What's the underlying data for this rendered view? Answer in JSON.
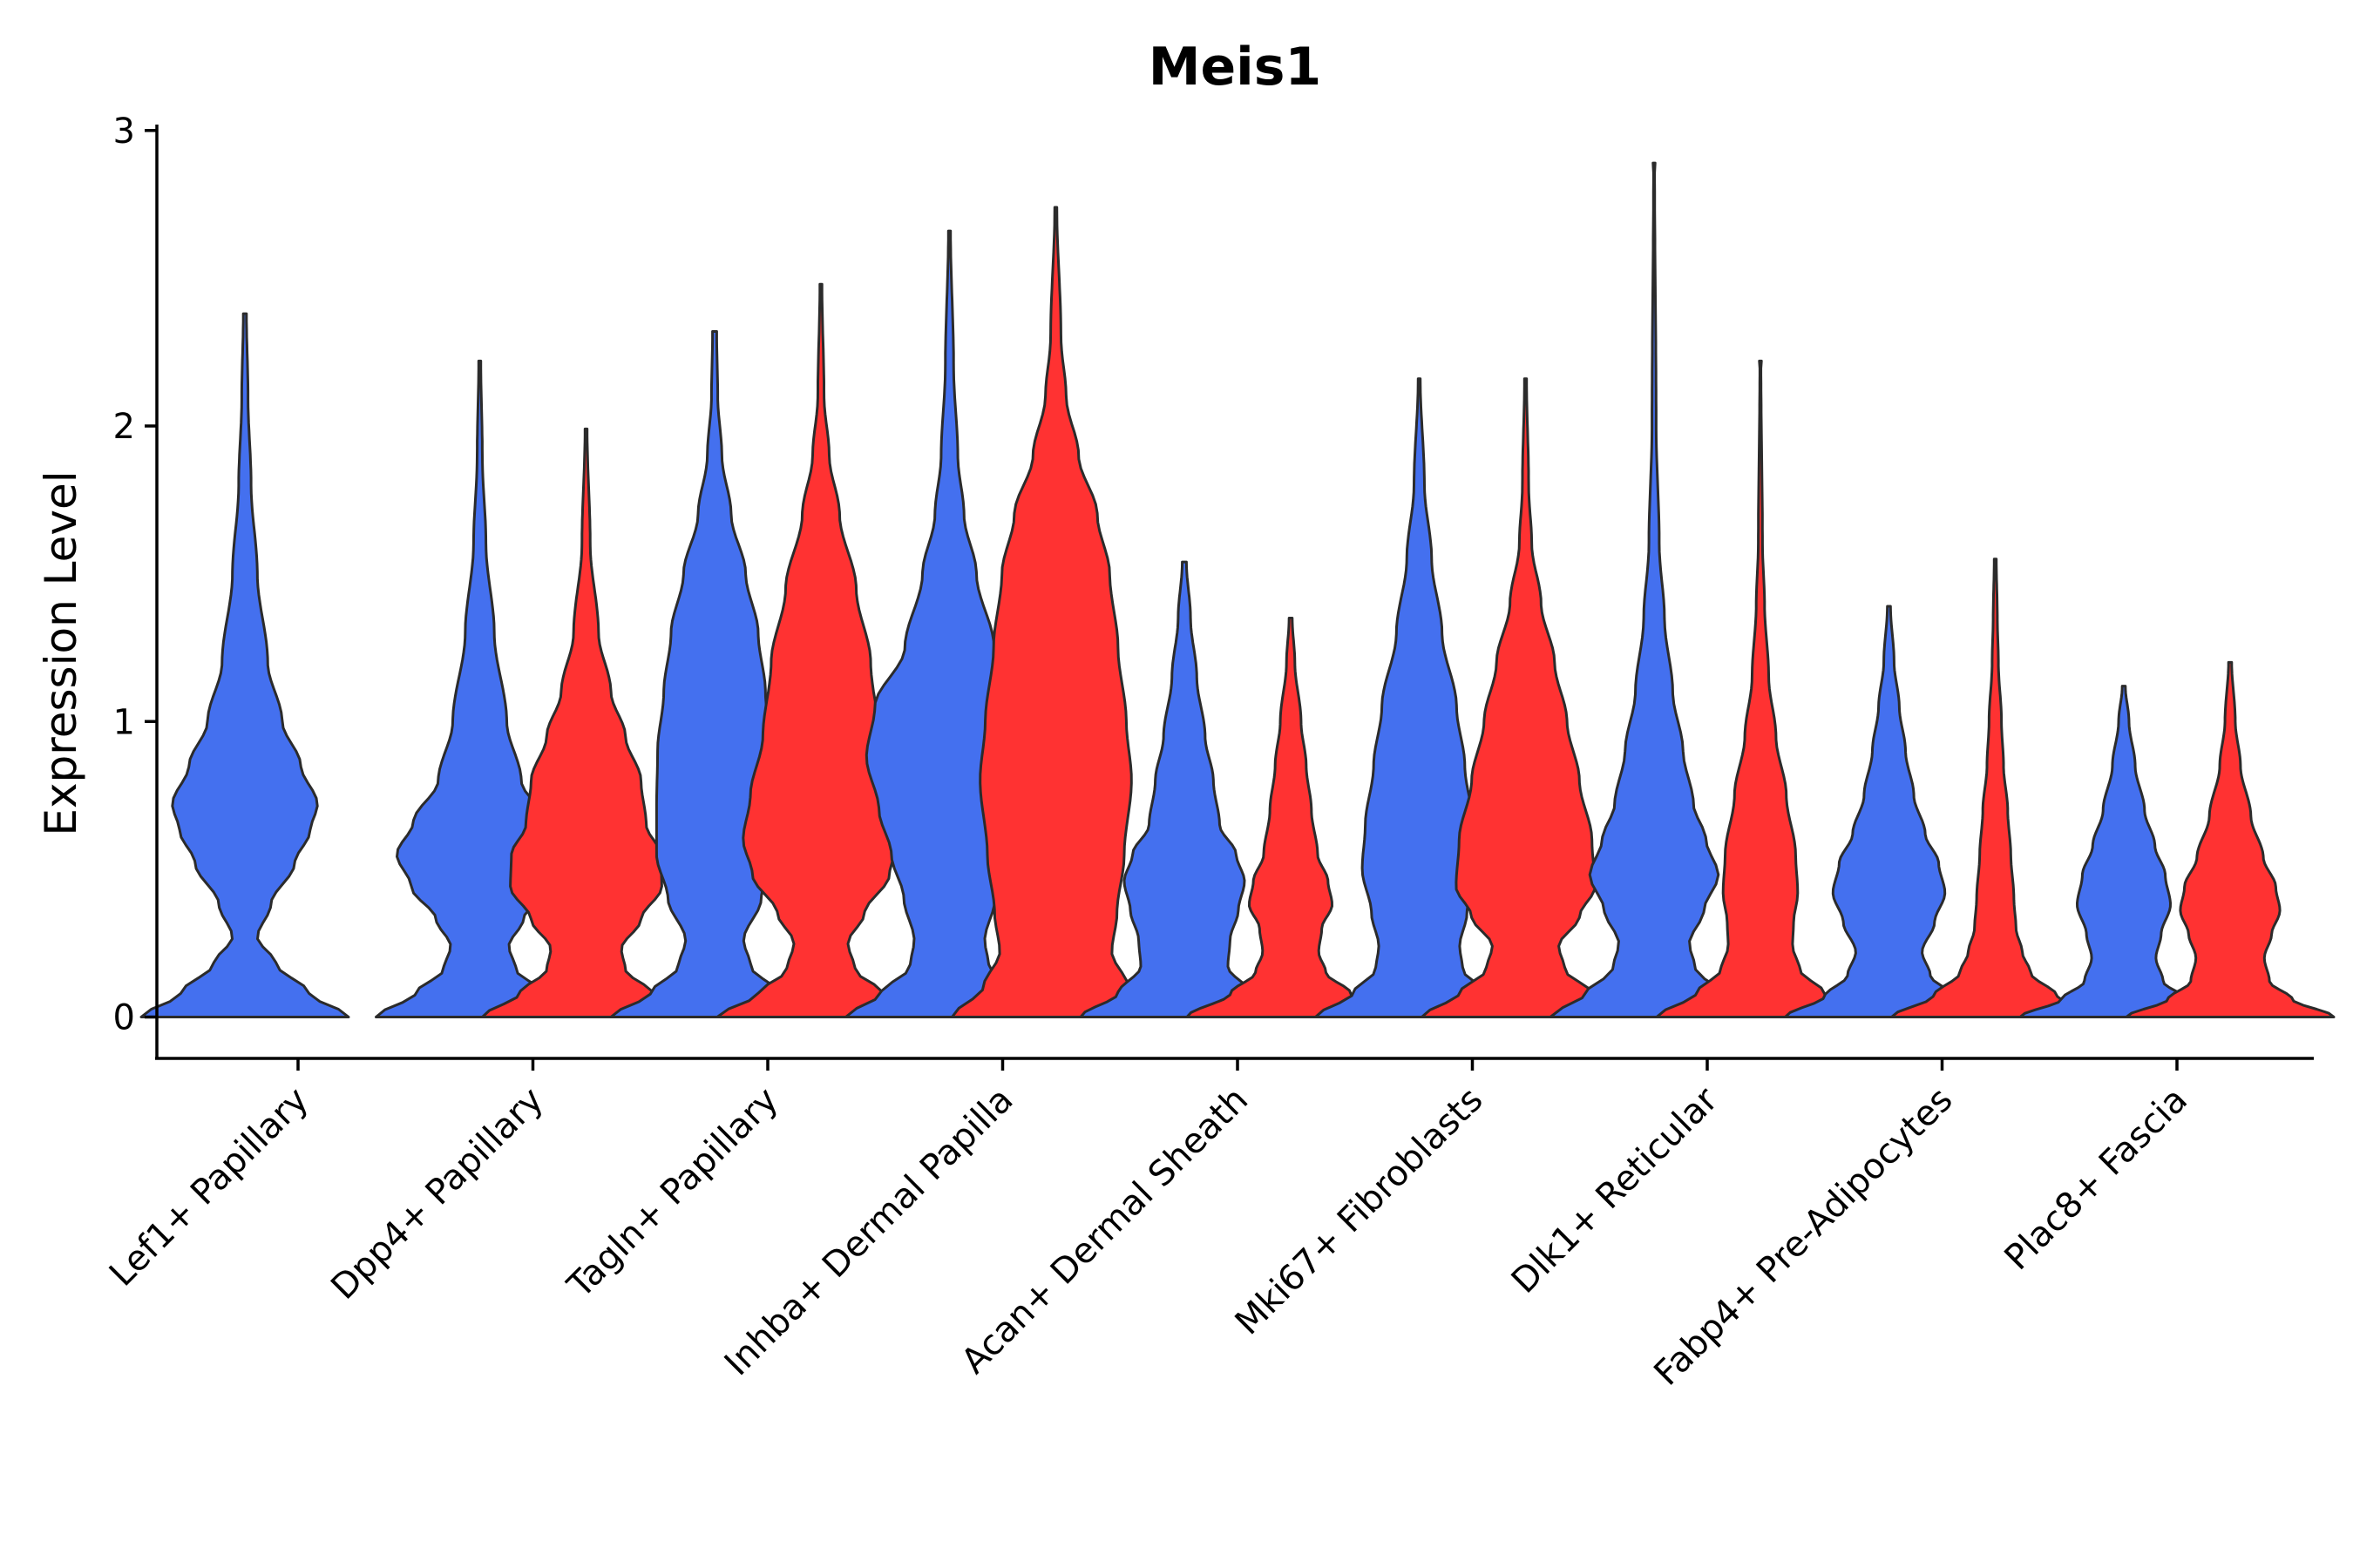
{
  "chart_data": {
    "type": "violin",
    "title": "Meis1",
    "ylabel": "Expression Level",
    "xlabel": "",
    "ylim": [
      -0.14,
      3.02
    ],
    "yticks": [
      0,
      1,
      2,
      3
    ],
    "yticks_labels": [
      "0",
      "1",
      "2",
      "3"
    ],
    "colors": {
      "group_a": "#4470ef",
      "group_b": "#ff3232"
    },
    "categories": [
      "Lef1+ Papillary",
      "Dpp4+ Papillary",
      "Tagln+ Papillary",
      "Inhba+ Dermal Papilla",
      "Acan+ Dermal Sheath",
      "Mki67+ Fibroblasts",
      "Dlk1+ Reticular",
      "Fabp4+ Pre-Adipocytes",
      "Plac8+ Fascia"
    ],
    "violins": [
      {
        "category": "Lef1+ Papillary",
        "group": "a",
        "max": 2.38,
        "profile": [
          [
            0,
            1.0
          ],
          [
            0.08,
            0.62
          ],
          [
            0.18,
            0.3
          ],
          [
            0.27,
            0.12
          ],
          [
            0.38,
            0.25
          ],
          [
            0.52,
            0.48
          ],
          [
            0.63,
            0.63
          ],
          [
            0.72,
            0.7
          ],
          [
            0.85,
            0.54
          ],
          [
            1.0,
            0.36
          ],
          [
            1.2,
            0.22
          ],
          [
            1.5,
            0.12
          ],
          [
            1.8,
            0.06
          ],
          [
            2.1,
            0.03
          ],
          [
            2.38,
            0.015
          ]
        ]
      },
      {
        "category": "Dpp4+ Papillary",
        "group": "a",
        "max": 2.22,
        "profile": [
          [
            0,
            1.0
          ],
          [
            0.08,
            0.62
          ],
          [
            0.16,
            0.35
          ],
          [
            0.24,
            0.28
          ],
          [
            0.33,
            0.42
          ],
          [
            0.44,
            0.66
          ],
          [
            0.55,
            0.8
          ],
          [
            0.66,
            0.64
          ],
          [
            0.8,
            0.4
          ],
          [
            1.0,
            0.26
          ],
          [
            1.3,
            0.14
          ],
          [
            1.6,
            0.06
          ],
          [
            1.9,
            0.025
          ],
          [
            2.22,
            0.01
          ]
        ]
      },
      {
        "category": "Dpp4+ Papillary",
        "group": "b",
        "max": 1.99,
        "profile": [
          [
            0,
            1.0
          ],
          [
            0.08,
            0.64
          ],
          [
            0.16,
            0.38
          ],
          [
            0.23,
            0.34
          ],
          [
            0.33,
            0.53
          ],
          [
            0.44,
            0.73
          ],
          [
            0.55,
            0.72
          ],
          [
            0.65,
            0.58
          ],
          [
            0.8,
            0.53
          ],
          [
            0.95,
            0.38
          ],
          [
            1.1,
            0.24
          ],
          [
            1.3,
            0.12
          ],
          [
            1.6,
            0.04
          ],
          [
            1.99,
            0.01
          ]
        ]
      },
      {
        "category": "Tagln+ Papillary",
        "group": "a",
        "max": 2.32,
        "profile": [
          [
            0,
            1.0
          ],
          [
            0.08,
            0.62
          ],
          [
            0.17,
            0.35
          ],
          [
            0.26,
            0.28
          ],
          [
            0.4,
            0.45
          ],
          [
            0.55,
            0.56
          ],
          [
            0.7,
            0.56
          ],
          [
            0.9,
            0.55
          ],
          [
            1.1,
            0.49
          ],
          [
            1.3,
            0.42
          ],
          [
            1.5,
            0.3
          ],
          [
            1.7,
            0.16
          ],
          [
            1.9,
            0.07
          ],
          [
            2.1,
            0.03
          ],
          [
            2.32,
            0.02
          ]
        ]
      },
      {
        "category": "Tagln+ Papillary",
        "group": "b",
        "max": 2.48,
        "profile": [
          [
            0,
            1.0
          ],
          [
            0.08,
            0.6
          ],
          [
            0.16,
            0.33
          ],
          [
            0.25,
            0.26
          ],
          [
            0.35,
            0.42
          ],
          [
            0.48,
            0.66
          ],
          [
            0.6,
            0.75
          ],
          [
            0.75,
            0.68
          ],
          [
            0.95,
            0.56
          ],
          [
            1.2,
            0.48
          ],
          [
            1.45,
            0.34
          ],
          [
            1.7,
            0.18
          ],
          [
            1.9,
            0.08
          ],
          [
            2.1,
            0.03
          ],
          [
            2.48,
            0.01
          ]
        ]
      },
      {
        "category": "Inhba+ Dermal Papilla",
        "group": "a",
        "max": 2.66,
        "profile": [
          [
            0,
            1.0
          ],
          [
            0.08,
            0.66
          ],
          [
            0.17,
            0.38
          ],
          [
            0.26,
            0.34
          ],
          [
            0.4,
            0.44
          ],
          [
            0.55,
            0.56
          ],
          [
            0.7,
            0.68
          ],
          [
            0.88,
            0.8
          ],
          [
            1.05,
            0.72
          ],
          [
            1.25,
            0.43
          ],
          [
            1.5,
            0.26
          ],
          [
            1.7,
            0.14
          ],
          [
            1.9,
            0.08
          ],
          [
            2.2,
            0.04
          ],
          [
            2.66,
            0.01
          ]
        ]
      },
      {
        "category": "Inhba+ Dermal Papilla",
        "group": "b",
        "max": 2.74,
        "profile": [
          [
            0,
            1.0
          ],
          [
            0.1,
            0.7
          ],
          [
            0.22,
            0.54
          ],
          [
            0.35,
            0.59
          ],
          [
            0.55,
            0.66
          ],
          [
            0.8,
            0.73
          ],
          [
            1.0,
            0.68
          ],
          [
            1.25,
            0.6
          ],
          [
            1.5,
            0.52
          ],
          [
            1.7,
            0.4
          ],
          [
            1.9,
            0.22
          ],
          [
            2.1,
            0.1
          ],
          [
            2.3,
            0.05
          ],
          [
            2.74,
            0.01
          ]
        ]
      },
      {
        "category": "Acan+ Dermal Sheath",
        "group": "a",
        "max": 1.54,
        "profile": [
          [
            0,
            1.0
          ],
          [
            0.08,
            0.64
          ],
          [
            0.17,
            0.42
          ],
          [
            0.26,
            0.44
          ],
          [
            0.36,
            0.52
          ],
          [
            0.46,
            0.58
          ],
          [
            0.55,
            0.5
          ],
          [
            0.65,
            0.34
          ],
          [
            0.8,
            0.28
          ],
          [
            0.95,
            0.2
          ],
          [
            1.15,
            0.12
          ],
          [
            1.35,
            0.06
          ],
          [
            1.54,
            0.02
          ]
        ]
      },
      {
        "category": "Acan+ Dermal Sheath",
        "group": "b",
        "max": 1.35,
        "profile": [
          [
            0,
            1.0
          ],
          [
            0.08,
            0.58
          ],
          [
            0.15,
            0.34
          ],
          [
            0.22,
            0.27
          ],
          [
            0.3,
            0.3
          ],
          [
            0.38,
            0.4
          ],
          [
            0.46,
            0.36
          ],
          [
            0.55,
            0.26
          ],
          [
            0.7,
            0.2
          ],
          [
            0.85,
            0.15
          ],
          [
            1.0,
            0.1
          ],
          [
            1.2,
            0.04
          ],
          [
            1.35,
            0.015
          ]
        ]
      },
      {
        "category": "Mki67+ Fibroblasts",
        "group": "a",
        "max": 2.16,
        "profile": [
          [
            0,
            1.0
          ],
          [
            0.08,
            0.64
          ],
          [
            0.16,
            0.42
          ],
          [
            0.24,
            0.39
          ],
          [
            0.35,
            0.46
          ],
          [
            0.5,
            0.55
          ],
          [
            0.65,
            0.52
          ],
          [
            0.85,
            0.44
          ],
          [
            1.05,
            0.36
          ],
          [
            1.3,
            0.22
          ],
          [
            1.55,
            0.12
          ],
          [
            1.8,
            0.05
          ],
          [
            2.16,
            0.01
          ]
        ]
      },
      {
        "category": "Mki67+ Fibroblasts",
        "group": "b",
        "max": 2.16,
        "profile": [
          [
            0,
            1.0
          ],
          [
            0.08,
            0.64
          ],
          [
            0.16,
            0.38
          ],
          [
            0.24,
            0.32
          ],
          [
            0.34,
            0.52
          ],
          [
            0.44,
            0.67
          ],
          [
            0.6,
            0.64
          ],
          [
            0.8,
            0.52
          ],
          [
            1.0,
            0.4
          ],
          [
            1.2,
            0.28
          ],
          [
            1.4,
            0.15
          ],
          [
            1.6,
            0.06
          ],
          [
            1.8,
            0.03
          ],
          [
            2.16,
            0.01
          ]
        ]
      },
      {
        "category": "Dlk1+ Reticular",
        "group": "a",
        "max": 2.89,
        "profile": [
          [
            0,
            1.0
          ],
          [
            0.08,
            0.66
          ],
          [
            0.16,
            0.4
          ],
          [
            0.25,
            0.34
          ],
          [
            0.36,
            0.48
          ],
          [
            0.48,
            0.62
          ],
          [
            0.6,
            0.5
          ],
          [
            0.72,
            0.38
          ],
          [
            0.9,
            0.28
          ],
          [
            1.1,
            0.18
          ],
          [
            1.35,
            0.1
          ],
          [
            1.6,
            0.05
          ],
          [
            2.0,
            0.02
          ],
          [
            2.89,
            0.005
          ]
        ]
      },
      {
        "category": "Dlk1+ Reticular",
        "group": "b",
        "max": 2.22,
        "profile": [
          [
            0,
            1.0
          ],
          [
            0.08,
            0.62
          ],
          [
            0.16,
            0.38
          ],
          [
            0.24,
            0.31
          ],
          [
            0.32,
            0.32
          ],
          [
            0.42,
            0.36
          ],
          [
            0.55,
            0.34
          ],
          [
            0.75,
            0.25
          ],
          [
            0.95,
            0.15
          ],
          [
            1.15,
            0.08
          ],
          [
            1.4,
            0.04
          ],
          [
            1.6,
            0.02
          ],
          [
            2.22,
            0.005
          ]
        ]
      },
      {
        "category": "Fabp4+ Pre-Adipocytes",
        "group": "a",
        "max": 1.39,
        "profile": [
          [
            0,
            1.0
          ],
          [
            0.07,
            0.62
          ],
          [
            0.14,
            0.4
          ],
          [
            0.22,
            0.32
          ],
          [
            0.32,
            0.44
          ],
          [
            0.42,
            0.54
          ],
          [
            0.52,
            0.48
          ],
          [
            0.62,
            0.35
          ],
          [
            0.75,
            0.24
          ],
          [
            0.9,
            0.16
          ],
          [
            1.05,
            0.1
          ],
          [
            1.2,
            0.05
          ],
          [
            1.39,
            0.015
          ]
        ]
      },
      {
        "category": "Fabp4+ Pre-Adipocytes",
        "group": "b",
        "max": 1.55,
        "profile": [
          [
            0,
            1.0
          ],
          [
            0.07,
            0.6
          ],
          [
            0.15,
            0.34
          ],
          [
            0.22,
            0.26
          ],
          [
            0.3,
            0.2
          ],
          [
            0.4,
            0.18
          ],
          [
            0.55,
            0.15
          ],
          [
            0.7,
            0.12
          ],
          [
            0.85,
            0.08
          ],
          [
            1.0,
            0.06
          ],
          [
            1.2,
            0.03
          ],
          [
            1.35,
            0.02
          ],
          [
            1.55,
            0.01
          ]
        ]
      },
      {
        "category": "Plac8+ Fascia",
        "group": "a",
        "max": 1.12,
        "profile": [
          [
            0,
            1.0
          ],
          [
            0.06,
            0.6
          ],
          [
            0.12,
            0.38
          ],
          [
            0.2,
            0.31
          ],
          [
            0.28,
            0.36
          ],
          [
            0.38,
            0.45
          ],
          [
            0.48,
            0.4
          ],
          [
            0.58,
            0.3
          ],
          [
            0.7,
            0.2
          ],
          [
            0.85,
            0.11
          ],
          [
            1.0,
            0.05
          ],
          [
            1.12,
            0.015
          ]
        ]
      },
      {
        "category": "Plac8+ Fascia",
        "group": "b",
        "max": 1.2,
        "profile": [
          [
            0,
            1.0
          ],
          [
            0.06,
            0.6
          ],
          [
            0.12,
            0.38
          ],
          [
            0.2,
            0.33
          ],
          [
            0.28,
            0.4
          ],
          [
            0.36,
            0.48
          ],
          [
            0.44,
            0.44
          ],
          [
            0.54,
            0.32
          ],
          [
            0.68,
            0.2
          ],
          [
            0.85,
            0.1
          ],
          [
            1.0,
            0.05
          ],
          [
            1.2,
            0.015
          ]
        ]
      }
    ]
  }
}
